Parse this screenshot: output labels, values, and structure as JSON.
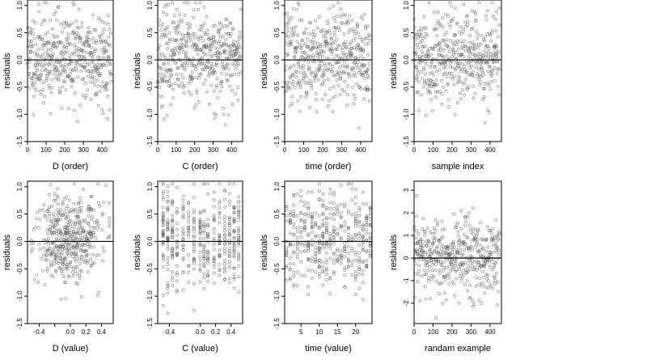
{
  "panels": [
    {
      "ylabel": "residuals",
      "xlabel": "D (order)",
      "xlim": [
        0,
        460
      ],
      "xticks": [
        0,
        100,
        200,
        300,
        400
      ],
      "ylim": [
        -1.5,
        1.1
      ],
      "yticks": [
        -1.5,
        -1.0,
        -0.5,
        0.0,
        0.5,
        1.0
      ],
      "ytick_labels": [
        "-1.5",
        "-1.0",
        "-0.5",
        "0.0",
        "0.5",
        "1.0"
      ],
      "kind": "index",
      "seed": 11
    },
    {
      "ylabel": "residuals",
      "xlabel": "C (order)",
      "xlim": [
        0,
        460
      ],
      "xticks": [
        0,
        100,
        200,
        300,
        400
      ],
      "ylim": [
        -1.5,
        1.1
      ],
      "yticks": [
        -1.5,
        -1.0,
        -0.5,
        0.0,
        0.5,
        1.0
      ],
      "ytick_labels": [
        "-1.5",
        "-1.0",
        "-0.5",
        "0.0",
        "0.5",
        "1.0"
      ],
      "kind": "index",
      "seed": 23
    },
    {
      "ylabel": "residuals",
      "xlabel": "time (order)",
      "xlim": [
        0,
        460
      ],
      "xticks": [
        0,
        100,
        200,
        300,
        400
      ],
      "ylim": [
        -1.5,
        1.1
      ],
      "yticks": [
        -1.5,
        -1.0,
        -0.5,
        0.0,
        0.5,
        1.0
      ],
      "ytick_labels": [
        "-1.5",
        "-1.0",
        "-0.5",
        "0.0",
        "0.5",
        "1.0"
      ],
      "kind": "index",
      "seed": 37
    },
    {
      "ylabel": "residuals",
      "xlabel": "sample index",
      "xlim": [
        0,
        460
      ],
      "xticks": [
        0,
        100,
        200,
        300,
        400
      ],
      "ylim": [
        -1.5,
        1.1
      ],
      "yticks": [
        -1.5,
        -1.0,
        -0.5,
        0.0,
        0.5,
        1.0
      ],
      "ytick_labels": [
        "-1.5",
        "-1.0",
        "-0.5",
        "0.0",
        "0.5",
        "1.0"
      ],
      "kind": "index",
      "seed": 41
    },
    {
      "ylabel": "residuals",
      "xlabel": "D (value)",
      "xlim": [
        -0.55,
        0.55
      ],
      "xticks": [
        -0.4,
        -0.2,
        0.0,
        0.2,
        0.4
      ],
      "xtick_labels": [
        "-0.4",
        "",
        "0.0",
        "0.2",
        "0.4"
      ],
      "ylim": [
        -1.5,
        1.1
      ],
      "yticks": [
        -1.5,
        -1.0,
        -0.5,
        0.0,
        0.5,
        1.0
      ],
      "ytick_labels": [
        "-1.5",
        "-1.0",
        "-0.5",
        "0.0",
        "0.5",
        "1.0"
      ],
      "kind": "value",
      "seed": 53
    },
    {
      "ylabel": "residuals",
      "xlabel": "C (value)",
      "xlim": [
        -0.55,
        0.55
      ],
      "xticks": [
        -0.4,
        0.0,
        0.2,
        0.4
      ],
      "xtick_labels": [
        "-0.4",
        "0.0",
        "0.2",
        "0.4"
      ],
      "ylim": [
        -1.5,
        1.1
      ],
      "yticks": [
        -1.5,
        -1.0,
        -0.5,
        0.0,
        0.5,
        1.0
      ],
      "ytick_labels": [
        "-1.5",
        "-1.0",
        "-0.5",
        "0.0",
        "0.5",
        "1.0"
      ],
      "kind": "columns",
      "seed": 67
    },
    {
      "ylabel": "residuals",
      "xlabel": "time (value)",
      "xlim": [
        0.5,
        24.5
      ],
      "xticks": [
        5,
        10,
        15,
        20
      ],
      "ylim": [
        -1.5,
        1.1
      ],
      "yticks": [
        -1.5,
        -1.0,
        -0.5,
        0.0,
        0.5,
        1.0
      ],
      "ytick_labels": [
        "-1.5",
        "-1.0",
        "-0.5",
        "0.0",
        "0.5",
        "1.0"
      ],
      "kind": "time",
      "seed": 79
    },
    {
      "ylabel": "residuals",
      "xlabel": "randam example",
      "xlim": [
        0,
        460
      ],
      "xticks": [
        0,
        100,
        200,
        300,
        400
      ],
      "ylim": [
        -2.9,
        3.4
      ],
      "yticks": [
        -2,
        -1,
        0,
        1,
        2,
        3
      ],
      "ytick_labels": [
        "-2",
        "-1",
        "0",
        "1",
        "2",
        "3"
      ],
      "kind": "random",
      "seed": 97
    }
  ],
  "chart_data": [
    {
      "type": "scatter",
      "xlabel": "D (order)",
      "ylabel": "residuals",
      "xlim": [
        0,
        460
      ],
      "ylim": [
        -1.5,
        1.1
      ],
      "reference_line_y": 0,
      "n_points": 450,
      "y_range": [
        -1.4,
        1.05
      ]
    },
    {
      "type": "scatter",
      "xlabel": "C (order)",
      "ylabel": "residuals",
      "xlim": [
        0,
        460
      ],
      "ylim": [
        -1.5,
        1.1
      ],
      "reference_line_y": 0,
      "n_points": 450,
      "y_range": [
        -1.4,
        1.05
      ]
    },
    {
      "type": "scatter",
      "xlabel": "time (order)",
      "ylabel": "residuals",
      "xlim": [
        0,
        460
      ],
      "ylim": [
        -1.5,
        1.1
      ],
      "reference_line_y": 0,
      "n_points": 450,
      "y_range": [
        -1.4,
        1.05
      ]
    },
    {
      "type": "scatter",
      "xlabel": "sample index",
      "ylabel": "residuals",
      "xlim": [
        0,
        460
      ],
      "ylim": [
        -1.5,
        1.1
      ],
      "reference_line_y": 0,
      "n_points": 450,
      "y_range": [
        -1.4,
        1.05
      ]
    },
    {
      "type": "scatter",
      "xlabel": "D (value)",
      "ylabel": "residuals",
      "xlim": [
        -0.55,
        0.55
      ],
      "ylim": [
        -1.5,
        1.1
      ],
      "reference_line_y": 0,
      "n_points": 450,
      "y_range": [
        -1.4,
        1.05
      ]
    },
    {
      "type": "scatter",
      "xlabel": "C (value)",
      "ylabel": "residuals",
      "xlim": [
        -0.55,
        0.55
      ],
      "ylim": [
        -1.5,
        1.1
      ],
      "reference_line_y": 0,
      "n_points": 450,
      "y_range": [
        -1.4,
        1.05
      ]
    },
    {
      "type": "scatter",
      "xlabel": "time (value)",
      "ylabel": "residuals",
      "xlim": [
        0.5,
        24.5
      ],
      "ylim": [
        -1.5,
        1.1
      ],
      "reference_line_y": 0,
      "n_points": 450,
      "y_range": [
        -1.4,
        1.05
      ]
    },
    {
      "type": "scatter",
      "xlabel": "randam example",
      "ylabel": "residuals",
      "xlim": [
        0,
        460
      ],
      "ylim": [
        -2.9,
        3.4
      ],
      "reference_line_y": 0,
      "n_points": 450,
      "y_range": [
        -2.7,
        3.2
      ]
    }
  ],
  "colors": {
    "point": "#555555",
    "axis": "#000000",
    "reference_line": "#000000"
  }
}
